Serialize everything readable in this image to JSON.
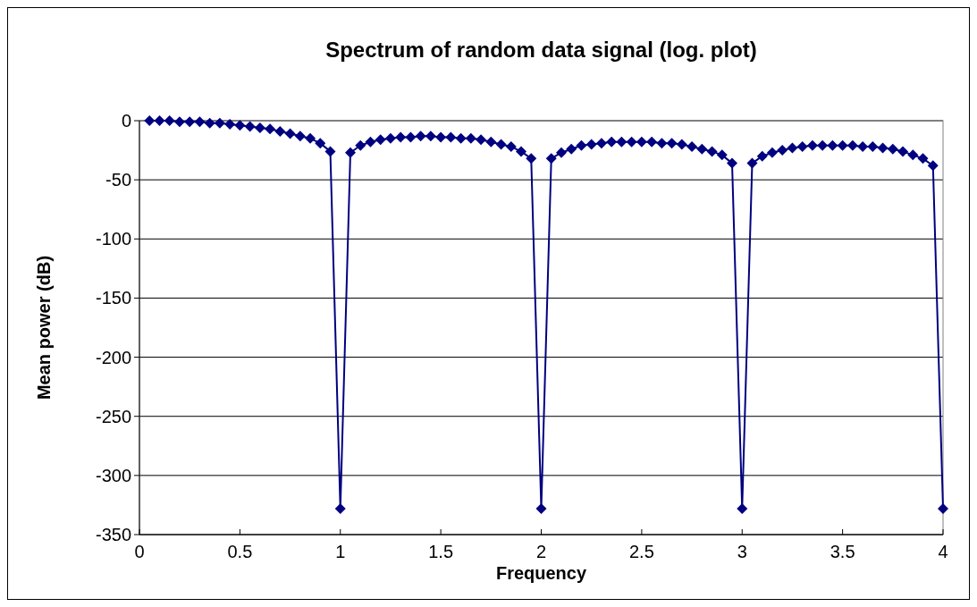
{
  "chart_data": {
    "type": "line",
    "title": "Spectrum of random data signal (log. plot)",
    "xlabel": "Frequency",
    "ylabel": "Mean power (dB)",
    "x": [
      0.05,
      0.1,
      0.15,
      0.2,
      0.25,
      0.3,
      0.35,
      0.4,
      0.45,
      0.5,
      0.55,
      0.6,
      0.65,
      0.7,
      0.75,
      0.8,
      0.85,
      0.9,
      0.95,
      1,
      1.05,
      1.1,
      1.15,
      1.2,
      1.25,
      1.3,
      1.35,
      1.4,
      1.45,
      1.5,
      1.55,
      1.6,
      1.65,
      1.7,
      1.75,
      1.8,
      1.85,
      1.9,
      1.95,
      2,
      2.05,
      2.1,
      2.15,
      2.2,
      2.25,
      2.3,
      2.35,
      2.4,
      2.45,
      2.5,
      2.55,
      2.6,
      2.65,
      2.7,
      2.75,
      2.8,
      2.85,
      2.9,
      2.95,
      3,
      3.05,
      3.1,
      3.15,
      3.2,
      3.25,
      3.3,
      3.35,
      3.4,
      3.45,
      3.5,
      3.55,
      3.6,
      3.65,
      3.7,
      3.75,
      3.8,
      3.85,
      3.9,
      3.95,
      4
    ],
    "series": [
      {
        "color": "#000080",
        "values": [
          0,
          0,
          0,
          -1,
          -1,
          -1,
          -2,
          -2,
          -3,
          -4,
          -5,
          -6,
          -7,
          -9,
          -11,
          -13,
          -15,
          -19,
          -26,
          -328,
          -27,
          -21,
          -18,
          -16,
          -15,
          -14,
          -14,
          -13,
          -13,
          -14,
          -14,
          -15,
          -15,
          -16,
          -18,
          -20,
          -22,
          -26,
          -32,
          -328,
          -32,
          -27,
          -24,
          -21,
          -20,
          -19,
          -18,
          -18,
          -18,
          -18,
          -18,
          -19,
          -19,
          -20,
          -22,
          -24,
          -26,
          -29,
          -36,
          -328,
          -36,
          -30,
          -27,
          -25,
          -23,
          -22,
          -21,
          -21,
          -21,
          -21,
          -21,
          -22,
          -22,
          -23,
          -24,
          -26,
          -29,
          -32,
          -38,
          -328
        ]
      }
    ],
    "xlim": [
      0,
      4
    ],
    "xticks": [
      0,
      0.5,
      1,
      1.5,
      2,
      2.5,
      3,
      3.5,
      4
    ],
    "ylim": [
      -350,
      0
    ],
    "yticks": [
      -350,
      -300,
      -250,
      -200,
      -150,
      -100,
      -50,
      0
    ],
    "grid": "y",
    "marker": "diamond",
    "line_style": "solid"
  }
}
